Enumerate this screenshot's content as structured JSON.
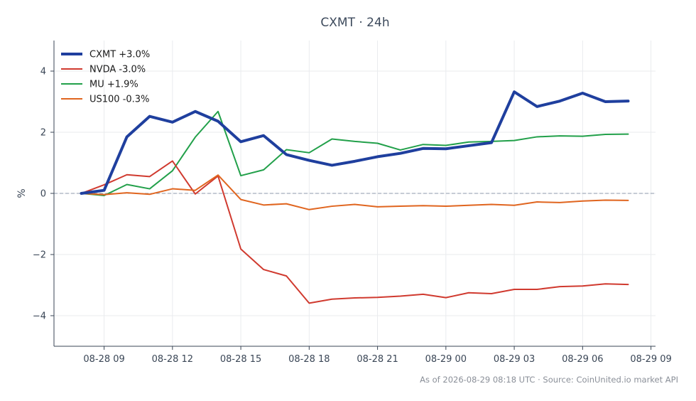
{
  "chart_data": {
    "type": "line",
    "title": "CXMT · 24h",
    "ylabel": "%",
    "xlabel": "",
    "ylim": [
      -5,
      5
    ],
    "y_ticks": [
      -4,
      -2,
      0,
      2,
      4
    ],
    "y_tick_labels": [
      "−4",
      "−2",
      "0",
      "2",
      "4"
    ],
    "x_ticks": [
      1,
      4,
      7,
      10,
      13,
      16,
      19,
      22,
      25
    ],
    "x_tick_labels": [
      "08-28 09",
      "08-28 12",
      "08-28 15",
      "08-28 18",
      "08-28 21",
      "08-29 00",
      "08-29 03",
      "08-29 06",
      "08-29 09"
    ],
    "xlim": [
      -1.2,
      25.2
    ],
    "grid": true,
    "zero_line": true,
    "legend_position": "top-left",
    "x": [
      0,
      1,
      2,
      3,
      4,
      5,
      6,
      7,
      8,
      9,
      10,
      11,
      12,
      13,
      14,
      15,
      16,
      17,
      18,
      19,
      20,
      21,
      22,
      23,
      24
    ],
    "series": [
      {
        "name": "CXMT +3.0%",
        "color": "#1f3f9e",
        "width": 4,
        "values": [
          0.0,
          0.1,
          1.85,
          2.52,
          2.33,
          2.68,
          2.36,
          1.69,
          1.89,
          1.27,
          1.08,
          0.92,
          1.05,
          1.2,
          1.31,
          1.47,
          1.46,
          1.56,
          1.66,
          3.32,
          2.84,
          3.02,
          3.28,
          3.0,
          3.02
        ]
      },
      {
        "name": "NVDA -3.0%",
        "color": "#d03a2f",
        "width": 2,
        "values": [
          0.0,
          0.28,
          0.61,
          0.55,
          1.06,
          -0.02,
          0.57,
          -1.82,
          -2.49,
          -2.7,
          -3.59,
          -3.46,
          -3.42,
          -3.4,
          -3.36,
          -3.3,
          -3.41,
          -3.25,
          -3.28,
          -3.14,
          -3.14,
          -3.05,
          -3.03,
          -2.96,
          -2.98
        ]
      },
      {
        "name": "MU +1.9%",
        "color": "#22a04a",
        "width": 2,
        "values": [
          0.0,
          -0.07,
          0.29,
          0.15,
          0.74,
          1.84,
          2.68,
          0.58,
          0.77,
          1.43,
          1.33,
          1.78,
          1.7,
          1.64,
          1.42,
          1.6,
          1.57,
          1.68,
          1.7,
          1.73,
          1.85,
          1.88,
          1.87,
          1.93,
          1.94
        ]
      },
      {
        "name": "US100 -0.3%",
        "color": "#e0651f",
        "width": 2,
        "values": [
          0.0,
          -0.04,
          0.02,
          -0.03,
          0.15,
          0.1,
          0.6,
          -0.2,
          -0.38,
          -0.34,
          -0.53,
          -0.42,
          -0.36,
          -0.44,
          -0.42,
          -0.4,
          -0.42,
          -0.39,
          -0.36,
          -0.39,
          -0.28,
          -0.3,
          -0.25,
          -0.22,
          -0.23
        ]
      }
    ]
  },
  "footer": {
    "source": "As of 2026-08-29 08:18 UTC · Source: CoinUnited.io market API"
  },
  "colors": {
    "axis": "#3a4656",
    "grid": "#e9ebee",
    "zero_line": "#8e9aab"
  }
}
